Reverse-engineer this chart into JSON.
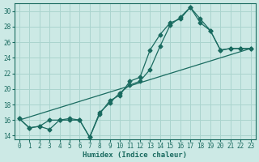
{
  "title": "",
  "xlabel": "Humidex (Indice chaleur)",
  "background_color": "#cce9e5",
  "grid_color": "#aad4ce",
  "line_color": "#1a6b60",
  "xlim": [
    -0.5,
    23.5
  ],
  "ylim": [
    13.5,
    31
  ],
  "xticks": [
    0,
    1,
    2,
    3,
    4,
    5,
    6,
    7,
    8,
    9,
    10,
    11,
    12,
    13,
    14,
    15,
    16,
    17,
    18,
    19,
    20,
    21,
    22,
    23
  ],
  "yticks": [
    14,
    16,
    18,
    20,
    22,
    24,
    26,
    28,
    30
  ],
  "series1": {
    "points": [
      [
        0,
        16.2
      ],
      [
        1,
        15.0
      ],
      [
        2,
        15.2
      ],
      [
        3,
        16.0
      ],
      [
        4,
        16.0
      ],
      [
        5,
        16.0
      ],
      [
        6,
        16.0
      ],
      [
        7,
        13.8
      ],
      [
        8,
        16.8
      ],
      [
        9,
        18.5
      ],
      [
        10,
        19.2
      ],
      [
        11,
        21.0
      ],
      [
        12,
        21.5
      ],
      [
        13,
        25.0
      ],
      [
        14,
        27.0
      ],
      [
        15,
        28.5
      ],
      [
        16,
        29.0
      ],
      [
        17,
        30.5
      ],
      [
        18,
        28.5
      ],
      [
        19,
        27.5
      ],
      [
        20,
        25.0
      ],
      [
        21,
        25.2
      ],
      [
        22,
        25.2
      ],
      [
        23,
        25.2
      ]
    ]
  },
  "series2": {
    "points": [
      [
        0,
        16.0
      ],
      [
        23,
        25.2
      ]
    ]
  },
  "series3": {
    "points": [
      [
        0,
        16.2
      ],
      [
        1,
        15.0
      ],
      [
        2,
        15.2
      ],
      [
        3,
        14.8
      ],
      [
        4,
        16.0
      ],
      [
        5,
        16.2
      ],
      [
        6,
        16.0
      ],
      [
        7,
        13.8
      ],
      [
        8,
        17.0
      ],
      [
        9,
        18.2
      ],
      [
        10,
        19.5
      ],
      [
        11,
        20.5
      ],
      [
        12,
        21.0
      ],
      [
        13,
        22.5
      ],
      [
        14,
        25.5
      ],
      [
        15,
        28.2
      ],
      [
        16,
        29.2
      ],
      [
        17,
        30.5
      ],
      [
        18,
        29.0
      ],
      [
        19,
        27.5
      ],
      [
        20,
        25.0
      ],
      [
        21,
        25.2
      ],
      [
        22,
        25.2
      ],
      [
        23,
        25.2
      ]
    ]
  }
}
